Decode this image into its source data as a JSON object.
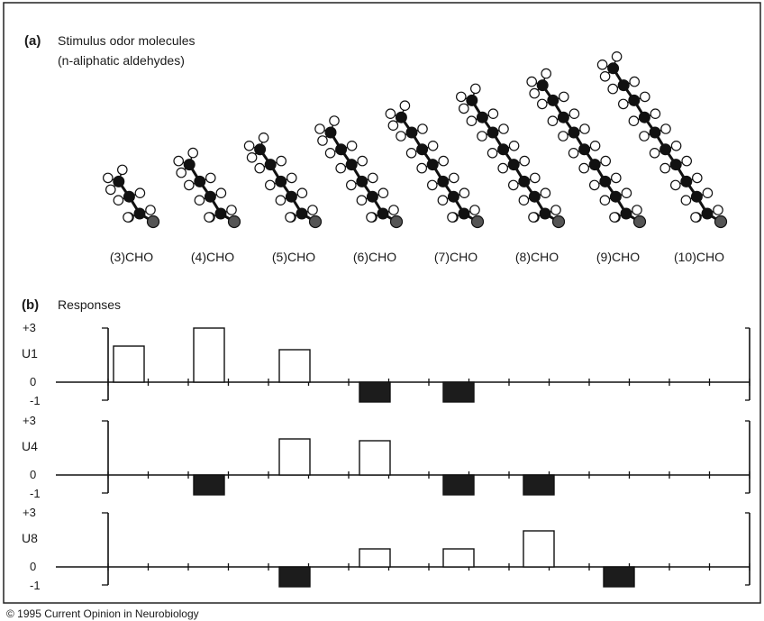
{
  "panel_a": {
    "letter": "(a)",
    "title_line1": "Stimulus odor molecules",
    "title_line2": "(n-aliphatic aldehydes)",
    "molecules": [
      {
        "label": "(3)CHO",
        "carbons": 3
      },
      {
        "label": "(4)CHO",
        "carbons": 4
      },
      {
        "label": "(5)CHO",
        "carbons": 5
      },
      {
        "label": "(6)CHO",
        "carbons": 6
      },
      {
        "label": "(7)CHO",
        "carbons": 7
      },
      {
        "label": "(8)CHO",
        "carbons": 8
      },
      {
        "label": "(9)CHO",
        "carbons": 9
      },
      {
        "label": "(10)CHO",
        "carbons": 10
      }
    ]
  },
  "panel_b": {
    "letter": "(b)",
    "title": "Responses"
  },
  "chart_data": {
    "type": "bar",
    "categories": [
      "(3)CHO",
      "(4)CHO",
      "(5)CHO",
      "(6)CHO",
      "(7)CHO",
      "(8)CHO",
      "(9)CHO",
      "(10)CHO"
    ],
    "ylim": [
      -1,
      3
    ],
    "ytick_top": "+3",
    "ytick_zero": "0",
    "ytick_bottom": "-1",
    "series": [
      {
        "name": "U1",
        "values": [
          2.0,
          3.0,
          1.8,
          -1.0,
          -1.0,
          0,
          0,
          0
        ]
      },
      {
        "name": "U4",
        "values": [
          0,
          -1.0,
          2.0,
          1.9,
          -1.0,
          -1.0,
          0,
          0
        ]
      },
      {
        "name": "U8",
        "values": [
          0,
          0,
          -1.0,
          1.0,
          1.0,
          2.0,
          -1.0,
          0
        ]
      }
    ],
    "positive_fill": "#ffffff",
    "negative_fill": "#1c1c1c"
  },
  "copyright": "© 1995 Current Opinion in Neurobiology",
  "colors": {
    "carbon": "#111111",
    "hydrogen": "#ffffff",
    "oxygen": "#555555",
    "frame": "#222222"
  }
}
